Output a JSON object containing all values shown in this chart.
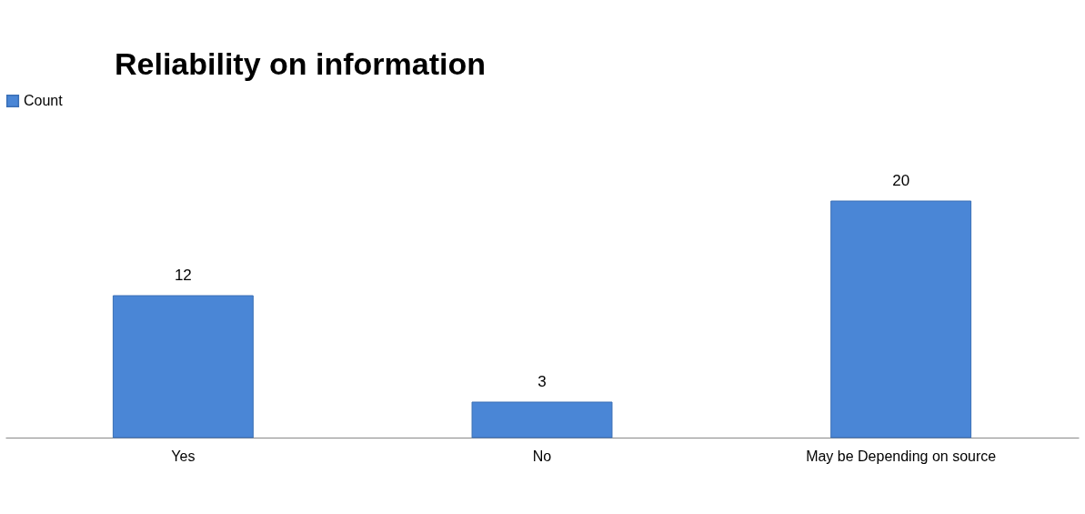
{
  "chart_data": {
    "type": "bar",
    "title": "Reliability on information",
    "categories": [
      "Yes",
      "No",
      "May be Depending on source"
    ],
    "series": [
      {
        "name": "Count",
        "color": "#4a86d6",
        "values": [
          12,
          3,
          20
        ]
      }
    ],
    "data_labels": true,
    "legend": "top",
    "grid": false
  }
}
